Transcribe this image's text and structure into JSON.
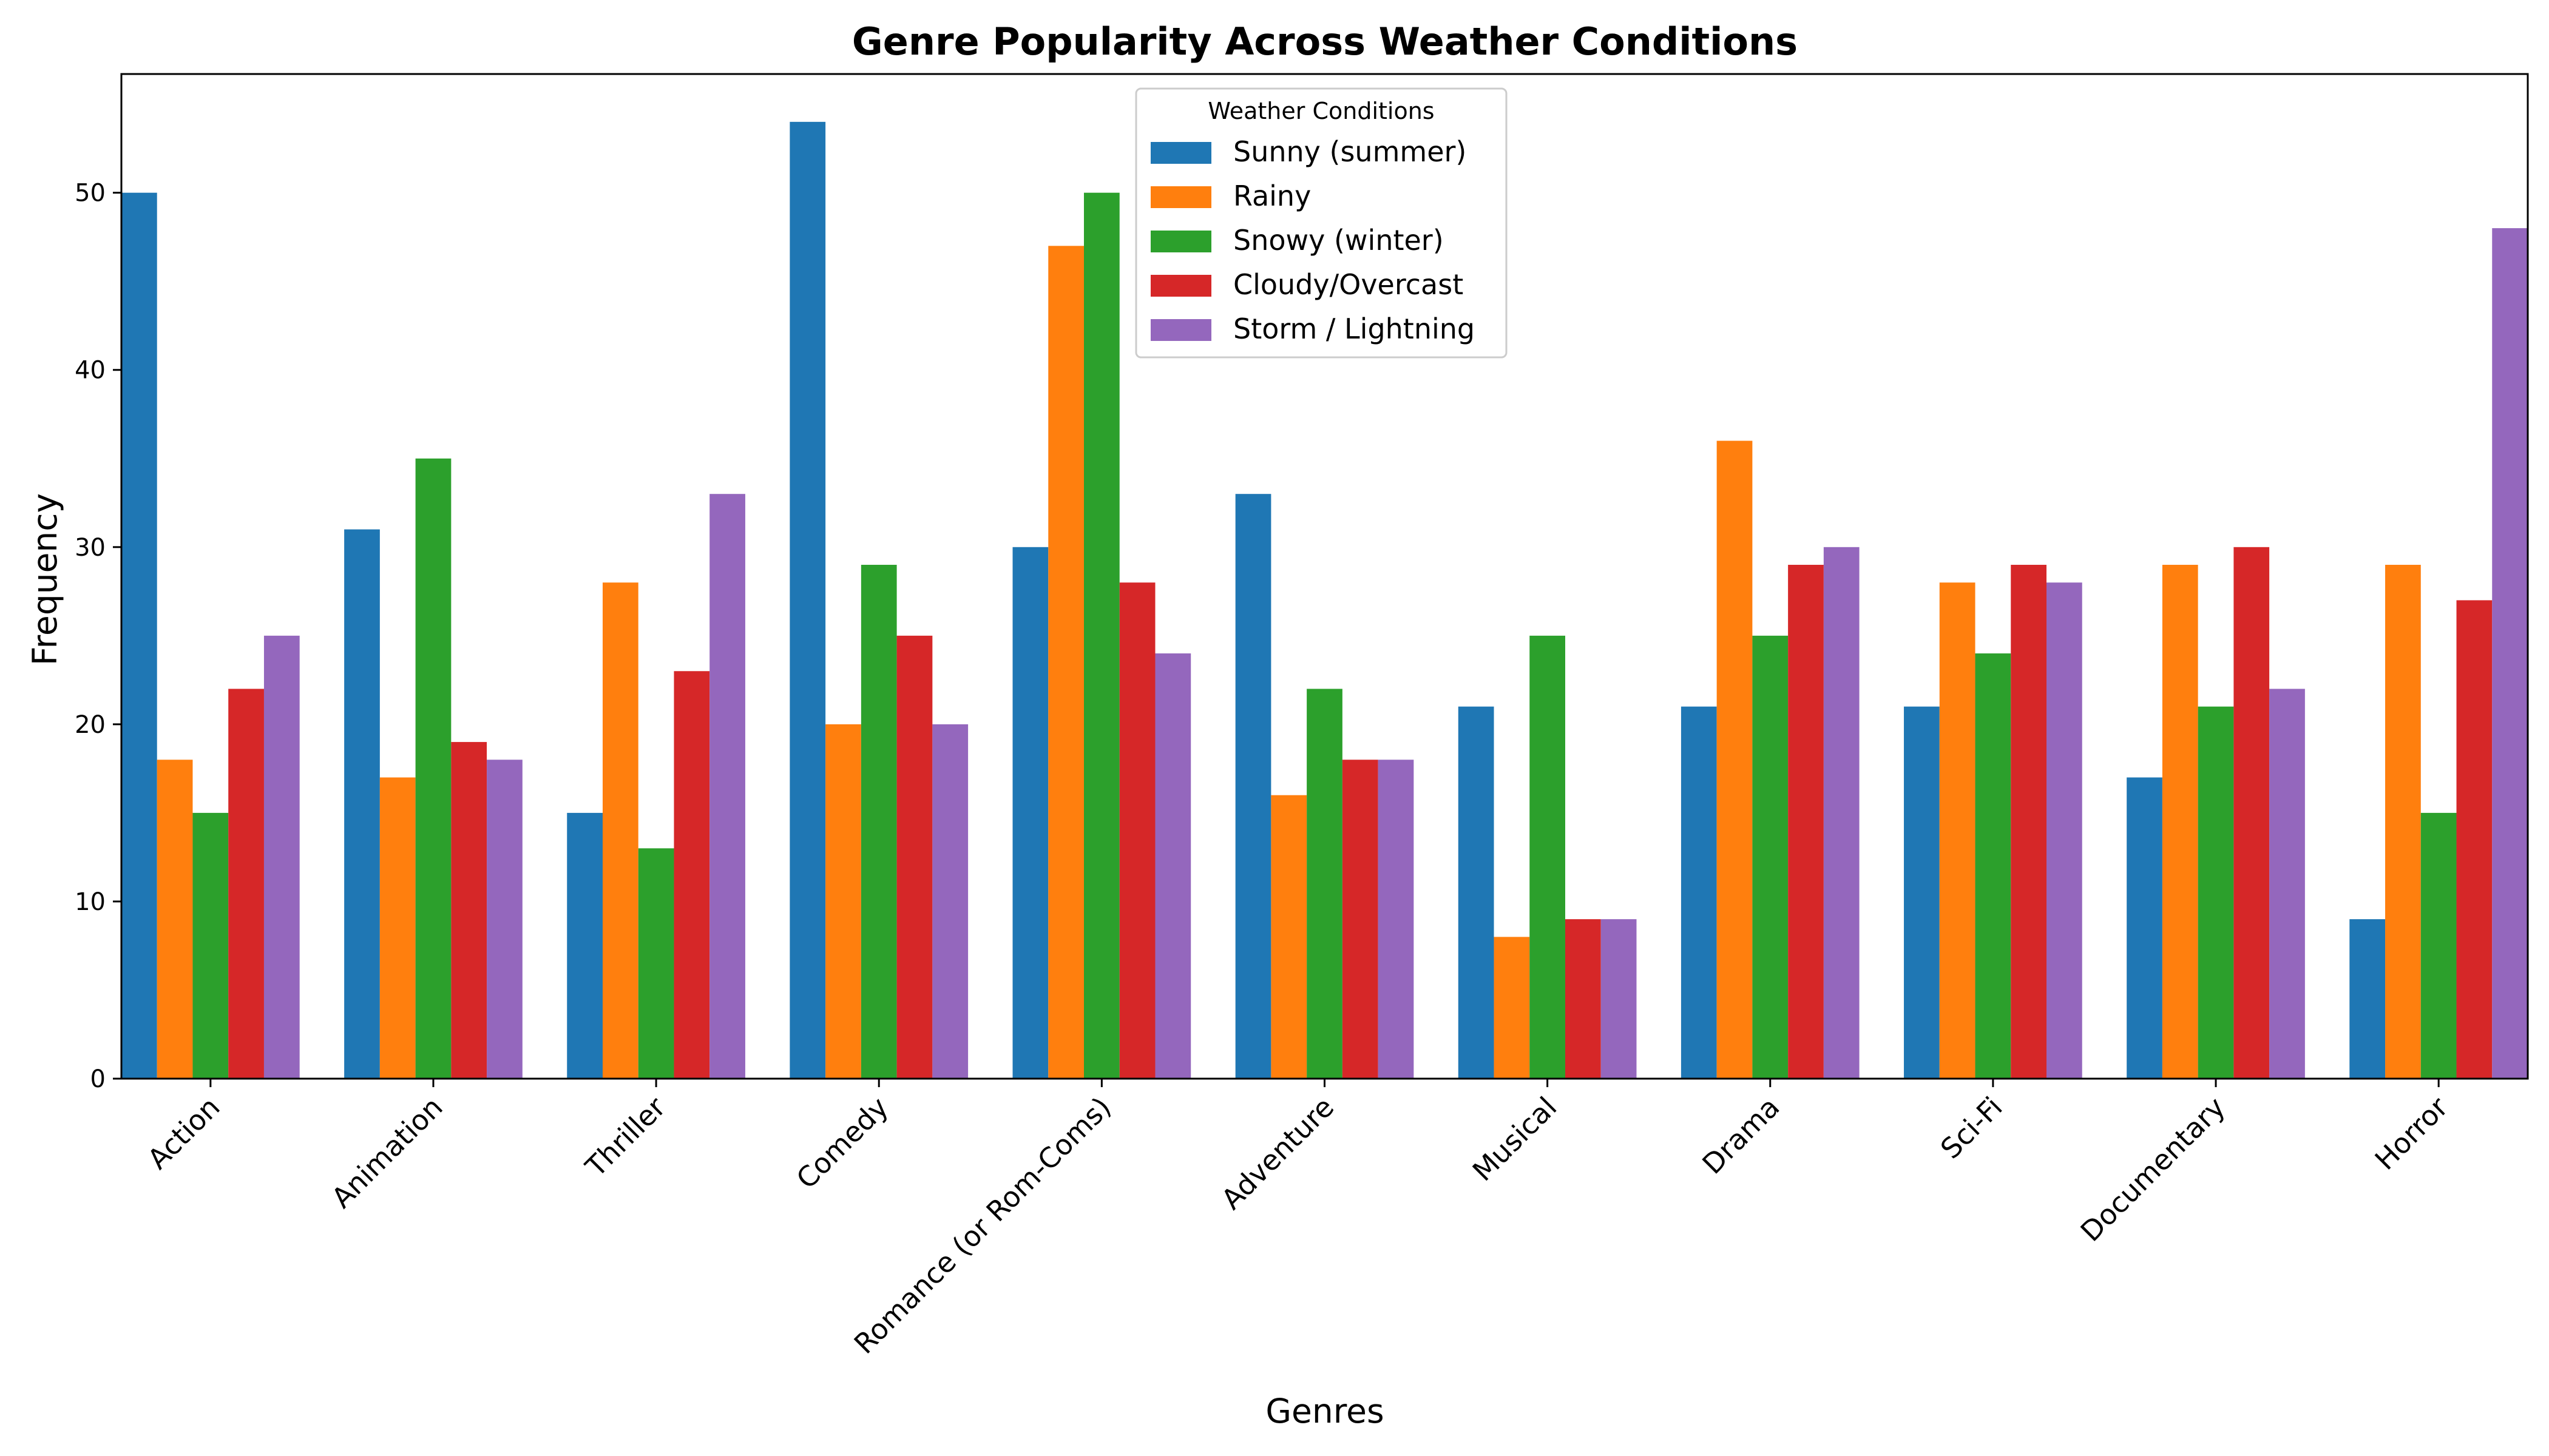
{
  "chart_data": {
    "type": "bar",
    "title": "Genre Popularity Across Weather Conditions",
    "xlabel": "Genres",
    "ylabel": "Frequency",
    "ylim": [
      0,
      56.7
    ],
    "yticks": [
      0,
      10,
      20,
      30,
      40,
      50
    ],
    "grid": false,
    "legend": {
      "title": "Weather Conditions",
      "placement": "upper-center"
    },
    "categories": [
      "Action",
      "Animation",
      "Thriller",
      "Comedy",
      "Romance (or Rom-Coms)",
      "Adventure",
      "Musical",
      "Drama",
      "Sci-Fi",
      "Documentary",
      "Horror"
    ],
    "series": [
      {
        "name": "Sunny (summer)",
        "color": "#1f77b4",
        "values": [
          50,
          31,
          15,
          54,
          30,
          33,
          21,
          21,
          21,
          17,
          9
        ]
      },
      {
        "name": "Rainy",
        "color": "#ff7f0e",
        "values": [
          18,
          17,
          28,
          20,
          47,
          16,
          8,
          36,
          28,
          29,
          29
        ]
      },
      {
        "name": "Snowy (winter)",
        "color": "#2ca02c",
        "values": [
          15,
          35,
          13,
          29,
          50,
          22,
          25,
          25,
          24,
          21,
          15
        ]
      },
      {
        "name": "Cloudy/Overcast",
        "color": "#d62728",
        "values": [
          22,
          19,
          23,
          25,
          28,
          18,
          9,
          29,
          29,
          30,
          27
        ]
      },
      {
        "name": "Storm / Lightning",
        "color": "#9467bd",
        "values": [
          25,
          18,
          33,
          20,
          24,
          18,
          9,
          30,
          28,
          22,
          48
        ]
      }
    ]
  }
}
